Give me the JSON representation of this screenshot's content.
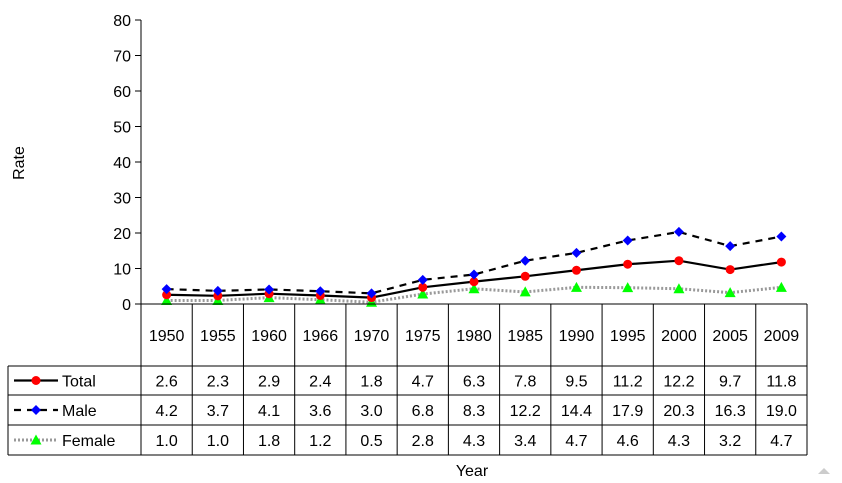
{
  "chart_data": {
    "type": "line",
    "xlabel": "Year",
    "ylabel": "Rate",
    "ylim": [
      0,
      80
    ],
    "yticks": [
      0,
      10,
      20,
      30,
      40,
      50,
      60,
      70,
      80
    ],
    "grid": false,
    "legend": "data-table",
    "categories": [
      "1950",
      "1955",
      "1960",
      "1966",
      "1970",
      "1975",
      "1980",
      "1985",
      "1990",
      "1995",
      "2000",
      "2005",
      "2009"
    ],
    "series": [
      {
        "name": "Total",
        "color": "#ff0000",
        "line": "#000000",
        "style": "solid",
        "marker": "circle",
        "values": [
          2.6,
          2.3,
          2.9,
          2.4,
          1.8,
          4.7,
          6.3,
          7.8,
          9.5,
          11.2,
          12.2,
          9.7,
          11.8
        ],
        "labels": [
          "2.6",
          "2.3",
          "2.9",
          "2.4",
          "1.8",
          "4.7",
          "6.3",
          "7.8",
          "9.5",
          "11.2",
          "12.2",
          "9.7",
          "11.8"
        ]
      },
      {
        "name": "Male",
        "color": "#0000ff",
        "line": "#000000",
        "style": "dashed",
        "marker": "diamond",
        "values": [
          4.2,
          3.7,
          4.1,
          3.6,
          3.0,
          6.8,
          8.3,
          12.2,
          14.4,
          17.9,
          20.3,
          16.3,
          19.0
        ],
        "labels": [
          "4.2",
          "3.7",
          "4.1",
          "3.6",
          "3.0",
          "6.8",
          "8.3",
          "12.2",
          "14.4",
          "17.9",
          "20.3",
          "16.3",
          "19.0"
        ]
      },
      {
        "name": "Female",
        "color": "#00ff00",
        "line": "#999999",
        "style": "dotted",
        "marker": "triangle",
        "values": [
          1.0,
          1.0,
          1.8,
          1.2,
          0.5,
          2.8,
          4.3,
          3.4,
          4.7,
          4.6,
          4.3,
          3.2,
          4.7
        ],
        "labels": [
          "1.0",
          "1.0",
          "1.8",
          "1.2",
          "0.5",
          "2.8",
          "4.3",
          "3.4",
          "4.7",
          "4.6",
          "4.3",
          "3.2",
          "4.7"
        ]
      }
    ]
  }
}
